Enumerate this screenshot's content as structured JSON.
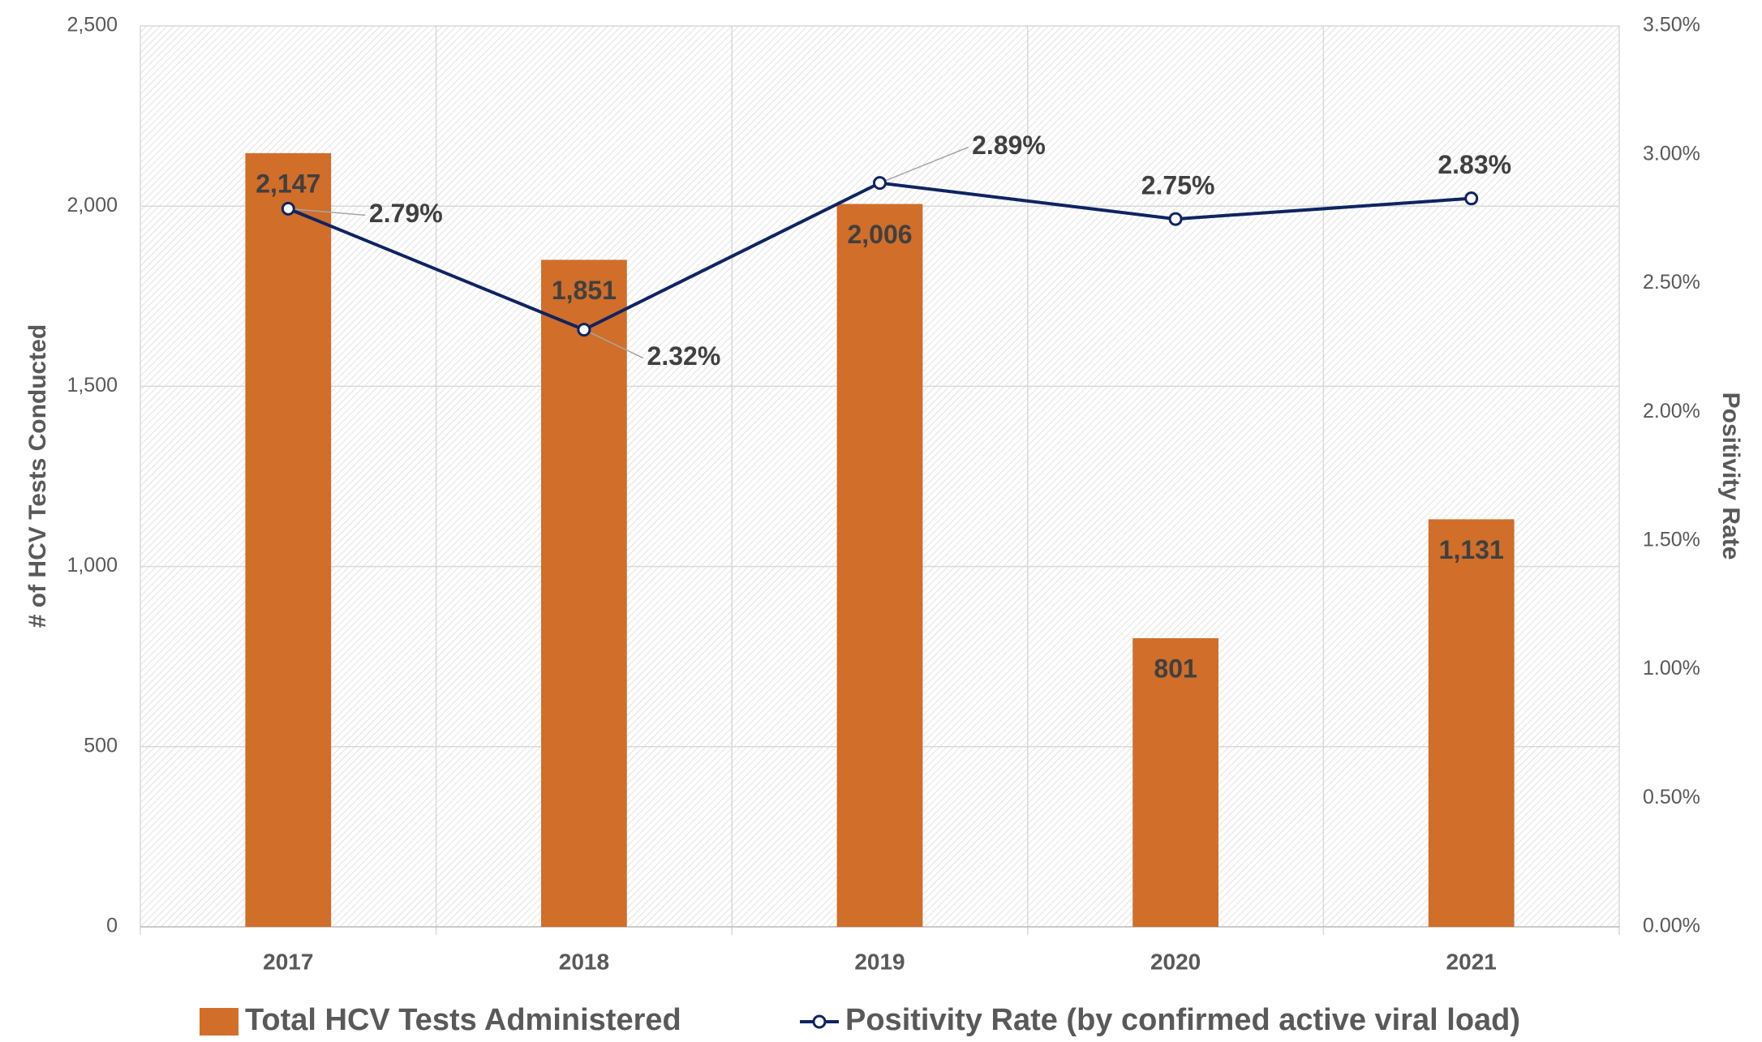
{
  "chart_data": {
    "type": "bar",
    "categories": [
      "2017",
      "2018",
      "2019",
      "2020",
      "2021"
    ],
    "series": [
      {
        "name": "Total HCV Tests Administered",
        "type": "bar",
        "color": "#D06E2A",
        "values": [
          2147,
          1851,
          2006,
          801,
          1131
        ],
        "value_labels": [
          "2,147",
          "1,851",
          "2,006",
          "801",
          "1,131"
        ]
      },
      {
        "name": "Positivity Rate (by confirmed active viral load)",
        "type": "line",
        "axis": "y2",
        "color": "#0F2461",
        "values": [
          2.79,
          2.32,
          2.89,
          2.75,
          2.83
        ],
        "value_labels": [
          "2.79%",
          "2.32%",
          "2.89%",
          "2.75%",
          "2.83%"
        ]
      }
    ],
    "ylabel": "# of HCV Tests Conducted",
    "y2label": "Positivity Rate",
    "ylim": [
      0,
      2500
    ],
    "yticks": [
      0,
      500,
      {
        "value": 1000,
        "label": "1,000"
      },
      {
        "value": 1500,
        "label": "1,500"
      },
      {
        "value": 2000,
        "label": "2,000"
      },
      {
        "value": 2500,
        "label": "2,500"
      }
    ],
    "y2lim": [
      0,
      3.5
    ],
    "y2ticks": [
      {
        "value": 0,
        "label": "0.00%"
      },
      {
        "value": 0.5,
        "label": "0.50%"
      },
      {
        "value": 1,
        "label": "1.00%"
      },
      {
        "value": 1.5,
        "label": "1.50%"
      },
      {
        "value": 2,
        "label": "2.00%"
      },
      {
        "value": 2.5,
        "label": "2.50%"
      },
      {
        "value": 3,
        "label": "3.00%"
      },
      {
        "value": 3.5,
        "label": "3.50%"
      }
    ],
    "grid": true,
    "legend": "bottom"
  }
}
